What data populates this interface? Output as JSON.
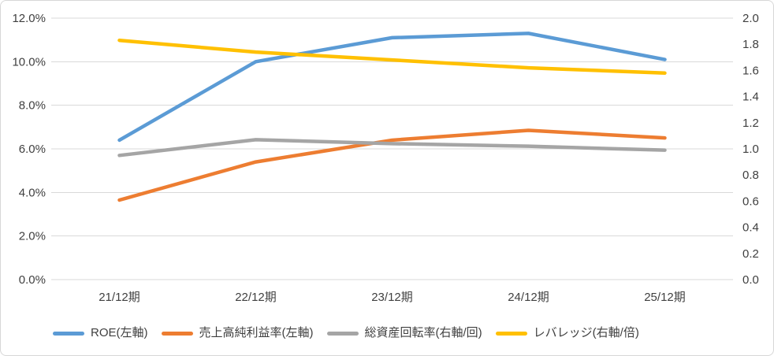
{
  "chart_data": {
    "type": "line",
    "title": "",
    "categories": [
      "21/12期",
      "22/12期",
      "23/12期",
      "24/12期",
      "25/12期"
    ],
    "series": [
      {
        "name": "ROE(左軸)",
        "axis": "left",
        "color": "#5B9BD5",
        "values": [
          6.4,
          10.0,
          11.1,
          11.3,
          10.1
        ]
      },
      {
        "name": "売上高純利益率(左軸)",
        "axis": "left",
        "color": "#ED7D31",
        "values": [
          3.65,
          5.4,
          6.4,
          6.85,
          6.5
        ]
      },
      {
        "name": "総資産回転率(右軸/回)",
        "axis": "right",
        "color": "#A5A5A5",
        "values": [
          0.95,
          1.07,
          1.04,
          1.02,
          0.99
        ]
      },
      {
        "name": "レバレッジ(右軸/倍)",
        "axis": "right",
        "color": "#FFC000",
        "values": [
          1.83,
          1.74,
          1.68,
          1.62,
          1.58
        ]
      }
    ],
    "left_axis": {
      "min": 0,
      "max": 12,
      "tick_labels": [
        "12.0%",
        "10.0%",
        "8.0%",
        "6.0%",
        "4.0%",
        "2.0%",
        "0.0%"
      ]
    },
    "right_axis": {
      "min": 0,
      "max": 2,
      "tick_labels": [
        "2.0",
        "1.8",
        "1.6",
        "1.4",
        "1.2",
        "1.0",
        "0.8",
        "0.6",
        "0.4",
        "0.2",
        "0.0"
      ]
    },
    "grid": true,
    "gridline_color": "#D9D9D9",
    "legend_position": "bottom",
    "xlabel": "",
    "ylabel": ""
  }
}
